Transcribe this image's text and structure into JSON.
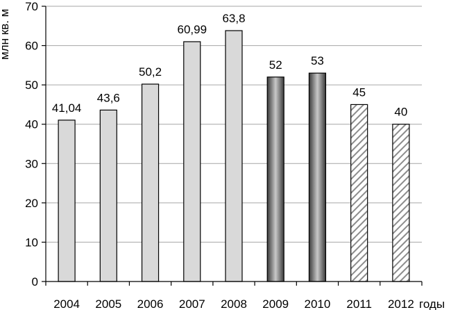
{
  "chart_data": {
    "type": "bar",
    "categories": [
      "2004",
      "2005",
      "2006",
      "2007",
      "2008",
      "2009",
      "2010",
      "2011",
      "2012"
    ],
    "values": [
      41.04,
      43.6,
      50.2,
      60.99,
      63.8,
      52,
      53,
      45,
      40
    ],
    "data_labels": [
      "41,04",
      "43,6",
      "50,2",
      "60,99",
      "63,8",
      "52",
      "53",
      "45",
      "40"
    ],
    "bar_styles": [
      "light",
      "light",
      "light",
      "light",
      "light",
      "dark",
      "dark",
      "hatched",
      "hatched"
    ],
    "ylabel": "млн кв. м",
    "xlabel": "годы",
    "ylim": [
      0,
      70
    ],
    "yticks": [
      0,
      10,
      20,
      30,
      40,
      50,
      60,
      70
    ],
    "grid": true,
    "legend": false,
    "colors": {
      "light": "#d9d9d9",
      "dark_edge": "#3a3a3a",
      "dark_mid": "#c8c8c8",
      "hatch_line": "#8c8c8c",
      "gridline": "#a6a6a6"
    }
  }
}
